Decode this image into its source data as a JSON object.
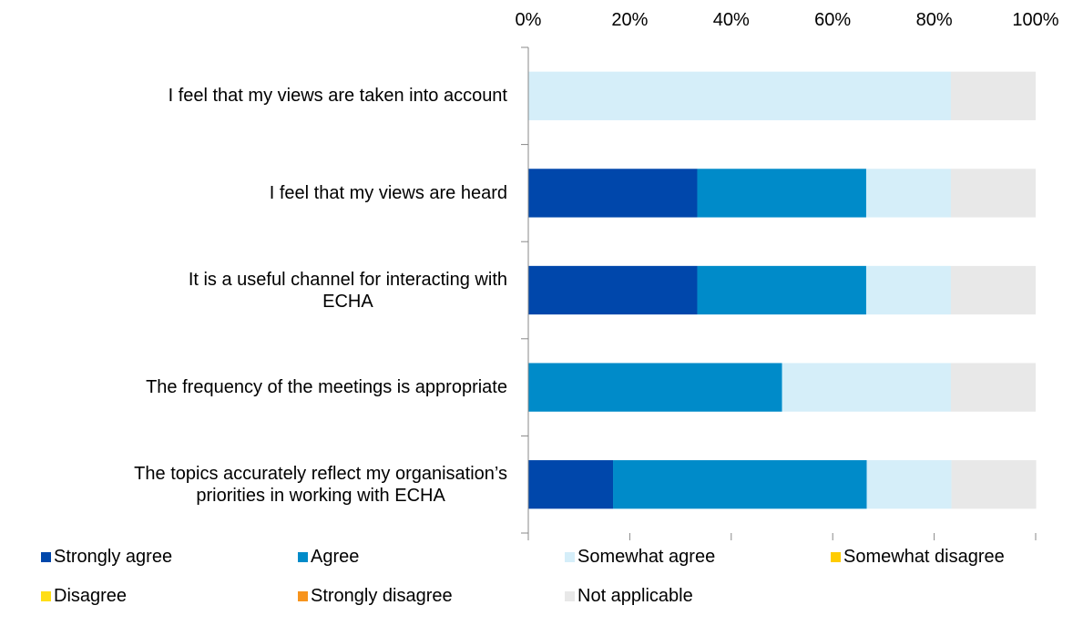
{
  "chart_data": {
    "type": "stacked_barh",
    "categories": [
      "I feel that my views are taken into account",
      "I feel that my views are heard",
      "It is a useful channel for interacting with\nECHA",
      "The frequency of the meetings is appropriate",
      "The topics accurately reflect my organisation’s\npriorities in working with ECHA"
    ],
    "series": [
      {
        "name": "Strongly agree",
        "color": "#0047ab",
        "values": [
          0,
          33.3,
          33.3,
          0,
          16.7
        ]
      },
      {
        "name": "Agree",
        "color": "#008bc9",
        "values": [
          0,
          33.3,
          33.3,
          50,
          50
        ]
      },
      {
        "name": "Somewhat agree",
        "color": "#d5eef9",
        "values": [
          83.3,
          16.7,
          16.7,
          33.3,
          16.7
        ]
      },
      {
        "name": "Somewhat disagree",
        "color": "#ffcc00",
        "values": [
          0,
          0,
          0,
          0,
          0
        ]
      },
      {
        "name": "Disagree",
        "color": "#ffde17",
        "values": [
          0,
          0,
          0,
          0,
          0
        ]
      },
      {
        "name": "Strongly disagree",
        "color": "#f7941d",
        "values": [
          0,
          0,
          0,
          0,
          0
        ]
      },
      {
        "name": "Not applicable",
        "color": "#e8e8e8",
        "values": [
          16.7,
          16.7,
          16.7,
          16.7,
          16.7
        ]
      }
    ],
    "xlim": [
      0,
      100
    ],
    "xticks": [
      {
        "value": 0,
        "label": "0%"
      },
      {
        "value": 20,
        "label": "20%"
      },
      {
        "value": 40,
        "label": "40%"
      },
      {
        "value": 60,
        "label": "60%"
      },
      {
        "value": 80,
        "label": "80%"
      },
      {
        "value": 100,
        "label": "100%"
      }
    ]
  }
}
